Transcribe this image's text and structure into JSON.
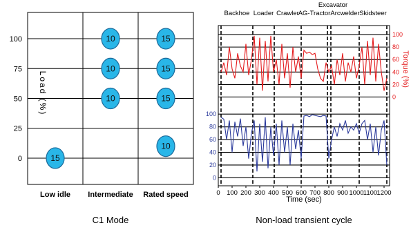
{
  "chart_data": [
    {
      "type": "scatter",
      "title": "",
      "caption": "C1 Mode",
      "xlabel": "",
      "ylabel": "Load (%)",
      "categories": [
        "Low idle",
        "Intermediate",
        "Rated speed"
      ],
      "y_ticks": [
        0,
        25,
        50,
        75,
        100
      ],
      "ylim": [
        -22,
        122
      ],
      "grid": true,
      "points": [
        {
          "x": "Low idle",
          "y": 0,
          "weight": "15"
        },
        {
          "x": "Intermediate",
          "y": 100,
          "weight": "10"
        },
        {
          "x": "Intermediate",
          "y": 75,
          "weight": "10"
        },
        {
          "x": "Intermediate",
          "y": 50,
          "weight": "10"
        },
        {
          "x": "Rated speed",
          "y": 100,
          "weight": "15"
        },
        {
          "x": "Rated speed",
          "y": 75,
          "weight": "15"
        },
        {
          "x": "Rated speed",
          "y": 50,
          "weight": "15"
        },
        {
          "x": "Rated speed",
          "y": 10,
          "weight": "10"
        }
      ],
      "colors": {
        "bubble": "#29b6e8",
        "bubble_edge": "#1c6a9a"
      }
    },
    {
      "type": "line",
      "title": "",
      "caption": "Non-load transient cycle",
      "xlabel": "Time (sec)",
      "x_ticks": [
        0,
        100,
        200,
        300,
        400,
        500,
        600,
        700,
        800,
        900,
        1000,
        1100,
        1200
      ],
      "xlim": [
        0,
        1240
      ],
      "segments": [
        {
          "name": "Backhoe",
          "start": 20,
          "end": 250
        },
        {
          "name": "Loader",
          "start": 250,
          "end": 405
        },
        {
          "name": "Crawler",
          "start": 405,
          "end": 600
        },
        {
          "name": "AG-Tractor",
          "start": 600,
          "end": 790
        },
        {
          "name": "Excavator",
          "start": 790,
          "end": 815
        },
        {
          "name": "Arcwelder",
          "start": 815,
          "end": 1020
        },
        {
          "name": "Skidsteer",
          "start": 1020,
          "end": 1220
        }
      ],
      "top_axis": {
        "label": "Torque (%)",
        "ticks": [
          0,
          20,
          40,
          60,
          80,
          100
        ],
        "ylim": [
          -5,
          110
        ]
      },
      "bottom_axis": {
        "ticks": [
          0,
          20,
          40,
          60,
          80,
          100
        ],
        "ylim": [
          -5,
          110
        ]
      },
      "series": [
        {
          "axis": "top",
          "color": "#e41a1c",
          "x": [
            20,
            40,
            60,
            80,
            100,
            120,
            140,
            160,
            180,
            200,
            220,
            240,
            260,
            280,
            300,
            320,
            340,
            360,
            380,
            400,
            420,
            440,
            460,
            480,
            500,
            520,
            540,
            560,
            580,
            600,
            620,
            640,
            660,
            680,
            700,
            720,
            740,
            760,
            780,
            800,
            820,
            840,
            860,
            880,
            900,
            920,
            940,
            960,
            980,
            1000,
            1020,
            1040,
            1060,
            1080,
            1100,
            1120,
            1140,
            1160,
            1180,
            1200,
            1220
          ],
          "values": [
            40,
            55,
            35,
            80,
            45,
            30,
            70,
            50,
            40,
            85,
            35,
            60,
            98,
            20,
            95,
            10,
            90,
            25,
            98,
            40,
            60,
            20,
            85,
            30,
            70,
            15,
            80,
            40,
            65,
            30,
            75,
            70,
            72,
            68,
            70,
            45,
            30,
            25,
            55,
            40,
            50,
            20,
            60,
            35,
            70,
            25,
            55,
            40,
            65,
            30,
            50,
            80,
            20,
            90,
            35,
            95,
            25,
            85,
            40,
            10,
            30
          ]
        },
        {
          "axis": "bottom",
          "color": "#2b3a9c",
          "x": [
            20,
            40,
            60,
            80,
            100,
            120,
            140,
            160,
            180,
            200,
            220,
            240,
            260,
            280,
            300,
            320,
            340,
            360,
            380,
            400,
            420,
            440,
            460,
            480,
            500,
            520,
            540,
            560,
            580,
            600,
            620,
            640,
            660,
            680,
            700,
            720,
            740,
            760,
            780,
            800,
            820,
            840,
            860,
            880,
            900,
            920,
            940,
            960,
            980,
            1000,
            1020,
            1040,
            1060,
            1080,
            1100,
            1120,
            1140,
            1160,
            1180,
            1200,
            1220
          ],
          "values": [
            95,
            92,
            60,
            90,
            40,
            88,
            65,
            93,
            50,
            80,
            30,
            70,
            90,
            10,
            85,
            25,
            95,
            15,
            80,
            35,
            85,
            20,
            90,
            40,
            80,
            20,
            85,
            45,
            75,
            30,
            97,
            98,
            96,
            99,
            98,
            97,
            96,
            98,
            97,
            30,
            60,
            80,
            65,
            85,
            75,
            90,
            70,
            80,
            75,
            85,
            70,
            85,
            90,
            60,
            85,
            40,
            80,
            35,
            75,
            90,
            20
          ]
        }
      ]
    }
  ]
}
